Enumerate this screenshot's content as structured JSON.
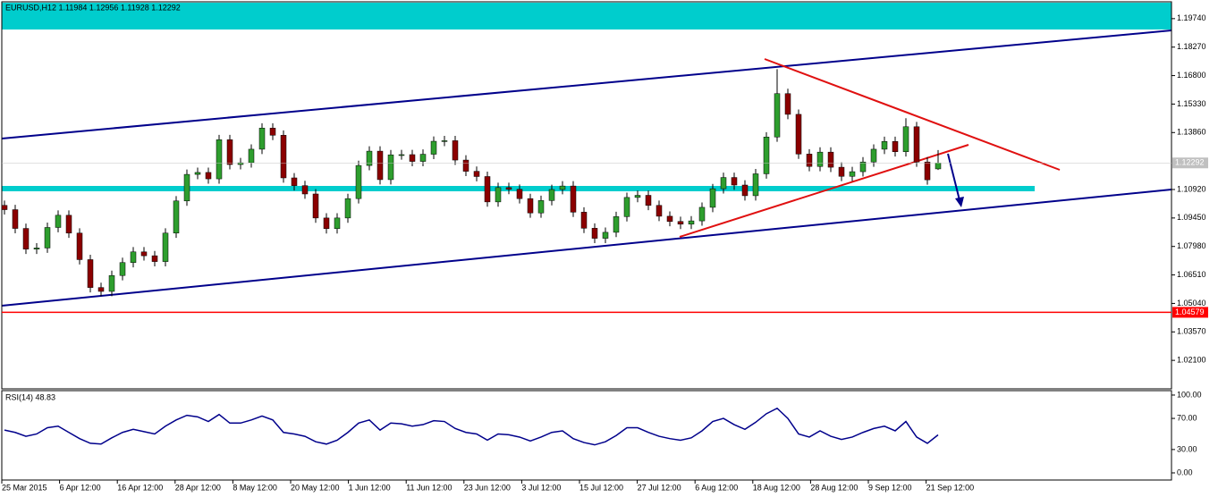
{
  "chart_data": [
    {
      "type": "candlestick",
      "title": "EURUSD,H12  1.11984 1.12956 1.11928 1.12292",
      "up_color": "#2e9e2e",
      "down_color": "#8b0000",
      "wick_color": "#000000",
      "ylim": [
        1.0063,
        1.2061
      ],
      "yticks": [
        {
          "value": 1.1974,
          "label": "1.19740"
        },
        {
          "value": 1.1827,
          "label": "1.18270"
        },
        {
          "value": 1.168,
          "label": "1.16800"
        },
        {
          "value": 1.1533,
          "label": "1.15330"
        },
        {
          "value": 1.1386,
          "label": "1.13860"
        },
        {
          "value": 1.1092,
          "label": "1.10920"
        },
        {
          "value": 1.0945,
          "label": "1.09450"
        },
        {
          "value": 1.0798,
          "label": "1.07980"
        },
        {
          "value": 1.0651,
          "label": "1.06510"
        },
        {
          "value": 1.0504,
          "label": "1.05040"
        },
        {
          "value": 1.0357,
          "label": "1.03570"
        },
        {
          "value": 1.021,
          "label": "1.02100"
        }
      ],
      "last_price": 1.12292,
      "hline": {
        "value": 1.04579,
        "color": "#ff0000"
      },
      "x_labels": [
        "25 Mar 2015",
        "6 Apr 12:00",
        "16 Apr 12:00",
        "28 Apr 12:00",
        "8 May 12:00",
        "20 May 12:00",
        "1 Jun 12:00",
        "11 Jun 12:00",
        "23 Jun 12:00",
        "3 Jul 12:00",
        "15 Jul 12:00",
        "27 Jul 12:00",
        "6 Aug 12:00",
        "18 Aug 12:00",
        "28 Aug 12:00",
        "9 Sep 12:00",
        "21 Sep 12:00"
      ],
      "candles": [
        [
          1.101,
          1.1035,
          1.0963,
          1.0988
        ],
        [
          1.0988,
          1.1013,
          1.0866,
          1.0891
        ],
        [
          1.0891,
          1.0916,
          1.0759,
          1.0784
        ],
        [
          1.0784,
          1.0815,
          1.0759,
          1.079
        ],
        [
          1.079,
          1.0921,
          1.0765,
          1.0896
        ],
        [
          1.0896,
          1.0984,
          1.0871,
          1.0959
        ],
        [
          1.0959,
          1.0984,
          1.0842,
          1.0867
        ],
        [
          1.0867,
          1.0892,
          1.0705,
          1.073
        ],
        [
          1.073,
          1.0755,
          1.0561,
          1.0586
        ],
        [
          1.0586,
          1.0611,
          1.0541,
          1.0566
        ],
        [
          1.0566,
          1.0673,
          1.0541,
          1.0648
        ],
        [
          1.0648,
          1.074,
          1.0623,
          1.0715
        ],
        [
          1.0715,
          1.0795,
          1.069,
          1.077
        ],
        [
          1.077,
          1.0795,
          1.0725,
          1.075
        ],
        [
          1.075,
          1.0775,
          1.0695,
          1.072
        ],
        [
          1.072,
          1.0892,
          1.0695,
          1.0867
        ],
        [
          1.0867,
          1.1058,
          1.0842,
          1.1033
        ],
        [
          1.1033,
          1.1195,
          1.1008,
          1.117
        ],
        [
          1.117,
          1.1205,
          1.1145,
          1.118
        ],
        [
          1.118,
          1.1205,
          1.1122,
          1.1147
        ],
        [
          1.1147,
          1.1374,
          1.1122,
          1.1349
        ],
        [
          1.1349,
          1.1374,
          1.1196,
          1.1221
        ],
        [
          1.1221,
          1.1255,
          1.1196,
          1.123
        ],
        [
          1.123,
          1.1325,
          1.1205,
          1.13
        ],
        [
          1.13,
          1.1434,
          1.1275,
          1.1409
        ],
        [
          1.1409,
          1.1434,
          1.1347,
          1.1372
        ],
        [
          1.1372,
          1.1397,
          1.1127,
          1.1152
        ],
        [
          1.1152,
          1.1177,
          1.1087,
          1.1112
        ],
        [
          1.1112,
          1.1137,
          1.1044,
          1.1069
        ],
        [
          1.1069,
          1.1094,
          1.092,
          1.0945
        ],
        [
          1.0945,
          1.097,
          1.0865,
          1.089
        ],
        [
          1.089,
          1.097,
          1.0865,
          1.0945
        ],
        [
          1.0945,
          1.107,
          1.092,
          1.1045
        ],
        [
          1.1045,
          1.1241,
          1.102,
          1.1216
        ],
        [
          1.1216,
          1.1315,
          1.1191,
          1.129
        ],
        [
          1.129,
          1.1315,
          1.1118,
          1.1143
        ],
        [
          1.1143,
          1.1296,
          1.1118,
          1.1271
        ],
        [
          1.1271,
          1.1297,
          1.1246,
          1.1272
        ],
        [
          1.1272,
          1.1297,
          1.1212,
          1.1237
        ],
        [
          1.1237,
          1.1299,
          1.1212,
          1.1274
        ],
        [
          1.1274,
          1.1366,
          1.1249,
          1.1341
        ],
        [
          1.1341,
          1.1369,
          1.1316,
          1.1344
        ],
        [
          1.1344,
          1.1369,
          1.1219,
          1.1244
        ],
        [
          1.1244,
          1.1269,
          1.1161,
          1.1186
        ],
        [
          1.1186,
          1.1211,
          1.1134,
          1.1159
        ],
        [
          1.1159,
          1.1184,
          1.1003,
          1.1028
        ],
        [
          1.1028,
          1.1127,
          1.1003,
          1.1102
        ],
        [
          1.1102,
          1.1127,
          1.1068,
          1.1093
        ],
        [
          1.1093,
          1.1118,
          1.102,
          1.1045
        ],
        [
          1.1045,
          1.107,
          1.0946,
          1.0971
        ],
        [
          1.0971,
          1.106,
          1.0946,
          1.1035
        ],
        [
          1.1035,
          1.1117,
          1.101,
          1.1092
        ],
        [
          1.1092,
          1.1135,
          1.1067,
          1.111
        ],
        [
          1.111,
          1.1135,
          1.095,
          1.0975
        ],
        [
          1.0975,
          1.1,
          1.0867,
          1.0892
        ],
        [
          1.0892,
          1.0917,
          1.0815,
          1.084
        ],
        [
          1.084,
          1.0896,
          1.0815,
          1.0871
        ],
        [
          1.0871,
          1.0977,
          1.0846,
          1.0952
        ],
        [
          1.0952,
          1.1076,
          1.0927,
          1.1051
        ],
        [
          1.1051,
          1.1087,
          1.1026,
          1.1062
        ],
        [
          1.1062,
          1.1087,
          1.0985,
          1.101
        ],
        [
          1.101,
          1.1035,
          1.0929,
          1.0954
        ],
        [
          1.0954,
          1.0979,
          1.0902,
          1.0927
        ],
        [
          1.0927,
          1.0952,
          1.0888,
          1.0913
        ],
        [
          1.0913,
          1.0955,
          1.0888,
          1.093
        ],
        [
          1.093,
          1.1025,
          1.0905,
          1.1
        ],
        [
          1.1,
          1.1121,
          1.0975,
          1.1096
        ],
        [
          1.1096,
          1.1179,
          1.1071,
          1.1154
        ],
        [
          1.1154,
          1.1179,
          1.109,
          1.1115
        ],
        [
          1.1115,
          1.114,
          1.1035,
          1.106
        ],
        [
          1.106,
          1.1198,
          1.1035,
          1.1173
        ],
        [
          1.1173,
          1.1388,
          1.1148,
          1.1363
        ],
        [
          1.1363,
          1.1713,
          1.1338,
          1.1587
        ],
        [
          1.1587,
          1.1612,
          1.1455,
          1.148
        ],
        [
          1.148,
          1.1505,
          1.125,
          1.1275
        ],
        [
          1.1275,
          1.13,
          1.1186,
          1.1211
        ],
        [
          1.1211,
          1.131,
          1.1186,
          1.1285
        ],
        [
          1.1285,
          1.131,
          1.1182,
          1.1207
        ],
        [
          1.1207,
          1.1232,
          1.1135,
          1.116
        ],
        [
          1.116,
          1.1209,
          1.1135,
          1.1184
        ],
        [
          1.1184,
          1.1259,
          1.1159,
          1.1234
        ],
        [
          1.1234,
          1.1325,
          1.1209,
          1.13
        ],
        [
          1.13,
          1.1365,
          1.1275,
          1.134
        ],
        [
          1.134,
          1.1365,
          1.1262,
          1.1287
        ],
        [
          1.1287,
          1.146,
          1.1262,
          1.1416
        ],
        [
          1.1416,
          1.1441,
          1.1209,
          1.1234
        ],
        [
          1.1234,
          1.1259,
          1.1117,
          1.1142
        ],
        [
          1.11984,
          1.12956,
          1.11928,
          1.12292
        ]
      ]
    },
    {
      "type": "line",
      "title": "RSI(14) 48.83",
      "color": "#00008b",
      "ylim": [
        -9.2,
        105.7
      ],
      "yticks": [
        {
          "value": 100,
          "label": "100.00"
        },
        {
          "value": 70,
          "label": "70.00"
        },
        {
          "value": 30,
          "label": "30.00"
        },
        {
          "value": 0,
          "label": "0.00"
        }
      ],
      "values": [
        55,
        52,
        47,
        50,
        58,
        60,
        52,
        44,
        38,
        37,
        45,
        52,
        56,
        53,
        50,
        60,
        68,
        74,
        72,
        66,
        75,
        64,
        64,
        68,
        73,
        68,
        52,
        50,
        47,
        40,
        37,
        42,
        52,
        64,
        68,
        55,
        64,
        63,
        60,
        62,
        67,
        66,
        57,
        52,
        50,
        42,
        50,
        49,
        46,
        41,
        46,
        52,
        54,
        44,
        39,
        36,
        40,
        48,
        58,
        58,
        52,
        47,
        44,
        42,
        45,
        54,
        66,
        70,
        62,
        56,
        65,
        76,
        83,
        70,
        50,
        46,
        54,
        47,
        43,
        46,
        52,
        57,
        60,
        54,
        66,
        46,
        38,
        48.83
      ]
    }
  ]
}
